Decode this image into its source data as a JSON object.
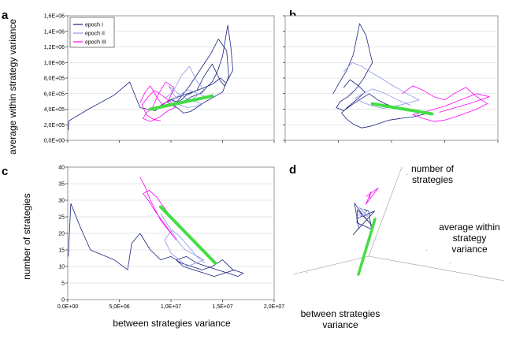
{
  "colors": {
    "epoch_1": "#1a237e",
    "epoch_2": "#8c96e6",
    "epoch_3": "#ff00ff",
    "trend": "#44dd44",
    "grid": "#d0d0d0"
  },
  "chart_data": [
    {
      "panel": "a",
      "type": "line",
      "ylabel": "average within strategy variance",
      "xlim": [
        0,
        20000000
      ],
      "ylim": [
        0,
        1600000
      ],
      "y_ticks": [
        "0,0E+00",
        "2,0E+05",
        "4,0E+05",
        "6,0E+05",
        "8,0E+05",
        "1,0E+06",
        "1,2E+06",
        "1,4E+06",
        "1,6E+06"
      ],
      "x_ticks": [],
      "grid": "horizontal",
      "legend": {
        "placement": "top-left",
        "entries": [
          "epoch I",
          "epoch II",
          "epoch III"
        ]
      },
      "series": [
        {
          "name": "epoch I",
          "x": [
            50000,
            100000,
            2000000,
            4500000,
            6000000,
            7000000,
            8500000,
            9000000,
            10000000,
            11000000,
            12000000,
            13000000,
            13500000,
            14000000,
            14500000,
            15000000,
            15500000,
            15800000,
            16000000,
            15200000,
            14800000,
            14000000,
            13200000,
            12500000,
            11500000,
            11000000,
            10500000,
            11800000,
            12800000,
            13800000,
            14600000,
            15400000,
            15600000,
            15000000,
            14200000,
            13400000,
            12600000,
            11900000,
            11200000,
            10700000,
            10000000,
            9600000,
            10300000,
            11400000,
            12300000,
            13100000,
            14000000,
            14800000,
            15300000
          ],
          "y": [
            130000,
            250000,
            400000,
            580000,
            750000,
            420000,
            380000,
            450000,
            520000,
            480000,
            560000,
            610000,
            690000,
            750000,
            880000,
            1080000,
            1480000,
            1200000,
            900000,
            700000,
            760000,
            980000,
            820000,
            640000,
            580000,
            520000,
            480000,
            700000,
            900000,
            1100000,
            1300000,
            1150000,
            820000,
            620000,
            560000,
            500000,
            430000,
            370000,
            350000,
            410000,
            460000,
            500000,
            540000,
            590000,
            630000,
            670000,
            720000,
            800000,
            740000
          ]
        },
        {
          "name": "epoch II",
          "x": [
            9500000,
            10200000,
            11000000,
            11800000,
            12500000,
            13200000,
            12000000,
            11000000,
            10300000,
            9800000,
            10600000,
            11500000,
            12300000,
            13000000,
            12400000,
            11600000,
            10800000,
            10100000,
            10900000,
            11700000,
            12600000,
            13400000
          ],
          "y": [
            550000,
            620000,
            830000,
            950000,
            760000,
            650000,
            520000,
            480000,
            580000,
            700000,
            610000,
            540000,
            500000,
            470000,
            440000,
            420000,
            460000,
            510000,
            590000,
            650000,
            600000,
            560000
          ]
        },
        {
          "name": "epoch III",
          "x": [
            7000000,
            7500000,
            8000000,
            8600000,
            9200000,
            9800000,
            10300000,
            9500000,
            8800000,
            8200000,
            7600000,
            7300000,
            8000000,
            8900000,
            9700000,
            10500000,
            9900000,
            9100000,
            8400000,
            7800000,
            7200000,
            7600000,
            8300000,
            9000000
          ],
          "y": [
            480000,
            620000,
            700000,
            560000,
            450000,
            520000,
            680000,
            750000,
            600000,
            420000,
            350000,
            280000,
            240000,
            300000,
            380000,
            430000,
            500000,
            580000,
            640000,
            560000,
            460000,
            330000,
            270000,
            250000
          ]
        }
      ],
      "trend": {
        "x": [
          8000000,
          14000000
        ],
        "y": [
          400000,
          570000
        ]
      }
    },
    {
      "panel": "b",
      "type": "line",
      "xlim": [
        0,
        20000000
      ],
      "ylim": [
        0,
        1600000
      ],
      "y_ticks": [],
      "x_ticks": [],
      "grid": "horizontal",
      "series": [
        {
          "name": "epoch I",
          "x": [
            4500000,
            5000000,
            5800000,
            6400000,
            7000000,
            7600000,
            8200000,
            7400000,
            6600000,
            5900000,
            5200000,
            4800000,
            5500000,
            6300000,
            7100000,
            7900000,
            8700000,
            9400000,
            10200000,
            11200000,
            12200000,
            13200000,
            12000000,
            10800000,
            9800000,
            8900000,
            8000000,
            7200000,
            6500000,
            5800000,
            5300000,
            5900000,
            6700000,
            7500000,
            6900000,
            6100000,
            5500000
          ],
          "y": [
            600000,
            720000,
            900000,
            1100000,
            1500000,
            1350000,
            1000000,
            800000,
            650000,
            560000,
            500000,
            420000,
            380000,
            460000,
            530000,
            600000,
            520000,
            470000,
            430000,
            400000,
            370000,
            340000,
            300000,
            280000,
            260000,
            220000,
            180000,
            160000,
            200000,
            270000,
            350000,
            430000,
            520000,
            620000,
            700000,
            780000,
            680000
          ]
        },
        {
          "name": "epoch II",
          "x": [
            5500000,
            6300000,
            7200000,
            8100000,
            9000000,
            9900000,
            10800000,
            11700000,
            12600000,
            11800000,
            11000000,
            10100000,
            9200000,
            8300000,
            7400000,
            6600000,
            7300000,
            8200000,
            9100000,
            10000000,
            10900000,
            11800000
          ],
          "y": [
            880000,
            1000000,
            950000,
            870000,
            800000,
            720000,
            650000,
            580000,
            520000,
            490000,
            460000,
            430000,
            410000,
            440000,
            480000,
            540000,
            600000,
            660000,
            620000,
            560000,
            500000,
            450000
          ]
        },
        {
          "name": "epoch III",
          "x": [
            11000000,
            12000000,
            13000000,
            14000000,
            15000000,
            16000000,
            17000000,
            18000000,
            19000000,
            18000000,
            17000000,
            16000000,
            15000000,
            14000000,
            13000000,
            12000000,
            13500000,
            15000000,
            16500000,
            18000000,
            19200000,
            17500000,
            16000000,
            14500000
          ],
          "y": [
            600000,
            700000,
            640000,
            560000,
            520000,
            610000,
            680000,
            560000,
            470000,
            400000,
            350000,
            300000,
            260000,
            240000,
            280000,
            330000,
            380000,
            440000,
            520000,
            600000,
            560000,
            480000,
            420000,
            360000
          ]
        }
      ],
      "trend": {
        "x": [
          8200000,
          13800000
        ],
        "y": [
          470000,
          340000
        ]
      }
    },
    {
      "panel": "c",
      "type": "line",
      "xlabel": "between strategies variance",
      "ylabel": "number of strategies",
      "xlim": [
        0,
        20000000
      ],
      "ylim": [
        0,
        40
      ],
      "y_ticks": [
        "0",
        "5",
        "10",
        "15",
        "20",
        "25",
        "30",
        "35",
        "40"
      ],
      "x_ticks": [
        "0,0E+00",
        "5,0E+06",
        "1,0E+07",
        "1,5E+07",
        "2,0E+07"
      ],
      "grid": "horizontal",
      "series": [
        {
          "name": "epoch I",
          "x": [
            50000,
            300000,
            1200000,
            2200000,
            4500000,
            5800000,
            6200000,
            7000000,
            8000000,
            9000000,
            10000000,
            11000000,
            12000000,
            13000000,
            14000000,
            15000000,
            16000000,
            17000000,
            16500000,
            15500000,
            14500000,
            13500000,
            12500000,
            11500000,
            10500000,
            11200000,
            12200000,
            13200000,
            14200000,
            15200000,
            16200000
          ],
          "y": [
            13,
            29,
            22,
            15,
            12,
            9,
            17,
            20,
            15,
            12,
            13,
            11,
            10,
            9,
            10,
            12,
            9,
            8,
            7,
            8,
            9,
            10,
            11,
            13,
            12,
            10,
            9,
            8,
            7,
            8,
            9
          ]
        },
        {
          "name": "epoch II",
          "x": [
            9000000,
            9600000,
            10200000,
            10800000,
            11400000,
            12000000,
            12600000,
            13200000,
            12400000,
            11600000,
            10800000,
            10000000,
            9400000,
            10100000,
            10900000,
            11700000,
            12500000,
            13300000
          ],
          "y": [
            26,
            23,
            20,
            17,
            15,
            14,
            13,
            12,
            11,
            10,
            12,
            14,
            18,
            21,
            19,
            16,
            13,
            11
          ]
        },
        {
          "name": "epoch III",
          "x": [
            7000000,
            7500000,
            8000000,
            8500000,
            9000000,
            9500000,
            10000000,
            10500000,
            9800000,
            9100000,
            8400000,
            7800000,
            7300000,
            7900000,
            8600000,
            9300000,
            10000000,
            10700000
          ],
          "y": [
            37,
            34,
            30,
            27,
            24,
            22,
            20,
            18,
            21,
            24,
            27,
            30,
            32,
            33,
            31,
            28,
            25,
            22
          ]
        }
      ],
      "trend": {
        "x": [
          9000000,
          14300000
        ],
        "y": [
          28,
          11
        ]
      }
    },
    {
      "panel": "d",
      "type": "line",
      "axis_labels": [
        "number of strategies",
        "average within strategy variance",
        "between strategies variance"
      ],
      "grid": "none",
      "series": [
        {
          "name": "epoch I",
          "points": [
            [
              0.72,
              0.03,
              0.5
            ],
            [
              0.8,
              0.25,
              0.6
            ],
            [
              0.6,
              0.15,
              0.35
            ],
            [
              0.55,
              0.3,
              0.45
            ],
            [
              0.65,
              0.05,
              0.7
            ],
            [
              0.75,
              0.1,
              0.55
            ],
            [
              0.85,
              0.2,
              0.4
            ],
            [
              0.68,
              0.08,
              0.62
            ],
            [
              0.58,
              0.22,
              0.5
            ],
            [
              0.7,
              0.35,
              0.42
            ],
            [
              0.82,
              0.12,
              0.58
            ],
            [
              0.62,
              0.28,
              0.66
            ]
          ]
        },
        {
          "name": "epoch II",
          "points": [
            [
              0.55,
              0.25,
              0.55
            ],
            [
              0.6,
              0.35,
              0.65
            ],
            [
              0.52,
              0.3,
              0.7
            ],
            [
              0.58,
              0.4,
              0.6
            ],
            [
              0.5,
              0.28,
              0.62
            ]
          ]
        },
        {
          "name": "epoch III",
          "points": [
            [
              0.45,
              0.55,
              0.85
            ],
            [
              0.4,
              0.62,
              0.95
            ],
            [
              0.5,
              0.5,
              0.9
            ],
            [
              0.38,
              0.58,
              0.8
            ],
            [
              0.48,
              0.65,
              0.98
            ],
            [
              0.42,
              0.52,
              0.88
            ]
          ]
        }
      ]
    }
  ]
}
